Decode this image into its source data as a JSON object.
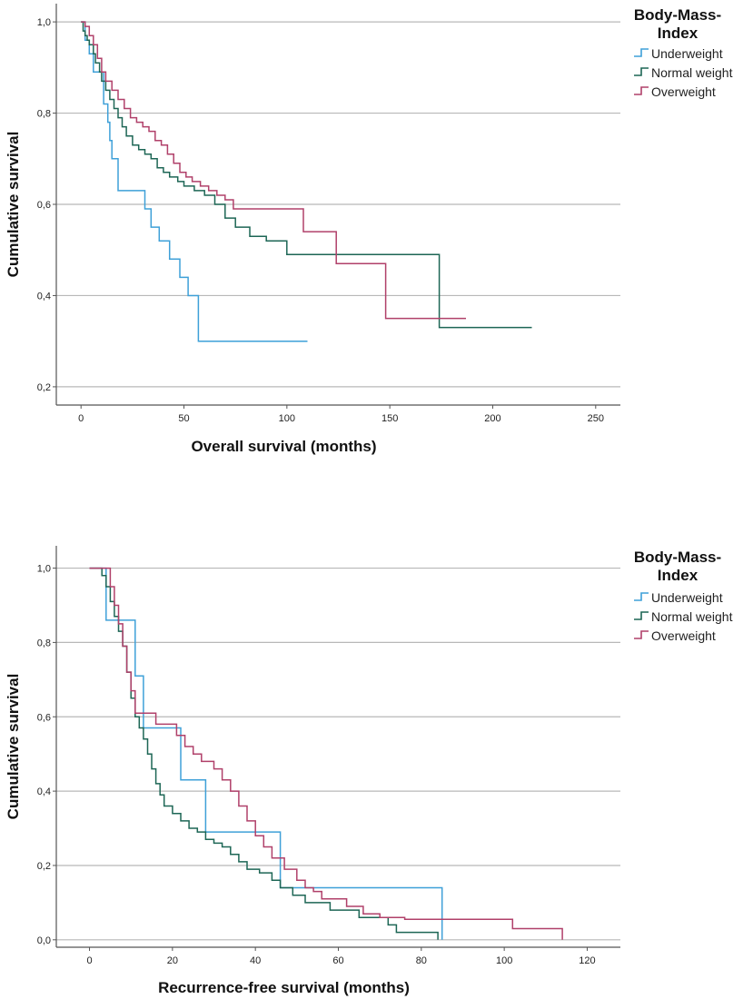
{
  "chart_data": [
    {
      "type": "line",
      "title": "",
      "xlabel": "Overall survival (months)",
      "ylabel": "Cumulative survival",
      "xlim": [
        -12,
        262
      ],
      "ylim": [
        0.16,
        1.04
      ],
      "xticks": [
        "0",
        "50",
        "100",
        "150",
        "200",
        "250"
      ],
      "xtick_values": [
        0,
        50,
        100,
        150,
        200,
        250
      ],
      "yticks": [
        "0,2",
        "0,4",
        "0,6",
        "0,8",
        "1,0"
      ],
      "ytick_values": [
        0.2,
        0.4,
        0.6,
        0.8,
        1.0
      ],
      "grid": "horizontal",
      "legend": {
        "title_line1": "Body-Mass-",
        "title_line2": "Index",
        "position": "top-right"
      },
      "series": [
        {
          "name": "Underweight",
          "color": "#3ea0d8",
          "points": [
            [
              0,
              1.0
            ],
            [
              2,
              0.96
            ],
            [
              4,
              0.93
            ],
            [
              6,
              0.89
            ],
            [
              9,
              0.89
            ],
            [
              11,
              0.82
            ],
            [
              13,
              0.78
            ],
            [
              14,
              0.74
            ],
            [
              15,
              0.7
            ],
            [
              18,
              0.63
            ],
            [
              29,
              0.63
            ],
            [
              31,
              0.59
            ],
            [
              34,
              0.55
            ],
            [
              38,
              0.52
            ],
            [
              43,
              0.48
            ],
            [
              48,
              0.44
            ],
            [
              52,
              0.4
            ],
            [
              57,
              0.3
            ],
            [
              110,
              0.3
            ]
          ]
        },
        {
          "name": "Normal weight",
          "color": "#1d6655",
          "points": [
            [
              0,
              1.0
            ],
            [
              1,
              0.98
            ],
            [
              2,
              0.97
            ],
            [
              3,
              0.96
            ],
            [
              4,
              0.95
            ],
            [
              6,
              0.93
            ],
            [
              7,
              0.91
            ],
            [
              9,
              0.89
            ],
            [
              10,
              0.87
            ],
            [
              12,
              0.85
            ],
            [
              14,
              0.83
            ],
            [
              16,
              0.81
            ],
            [
              18,
              0.79
            ],
            [
              20,
              0.77
            ],
            [
              22,
              0.75
            ],
            [
              25,
              0.73
            ],
            [
              28,
              0.72
            ],
            [
              31,
              0.71
            ],
            [
              34,
              0.7
            ],
            [
              37,
              0.68
            ],
            [
              40,
              0.67
            ],
            [
              43,
              0.66
            ],
            [
              47,
              0.65
            ],
            [
              50,
              0.64
            ],
            [
              55,
              0.63
            ],
            [
              60,
              0.62
            ],
            [
              65,
              0.6
            ],
            [
              70,
              0.57
            ],
            [
              75,
              0.55
            ],
            [
              82,
              0.53
            ],
            [
              90,
              0.52
            ],
            [
              100,
              0.49
            ],
            [
              174,
              0.49
            ],
            [
              174,
              0.33
            ],
            [
              219,
              0.33
            ]
          ]
        },
        {
          "name": "Overweight",
          "color": "#b0406a",
          "points": [
            [
              0,
              1.0
            ],
            [
              2,
              0.99
            ],
            [
              4,
              0.97
            ],
            [
              6,
              0.95
            ],
            [
              8,
              0.92
            ],
            [
              10,
              0.89
            ],
            [
              12,
              0.87
            ],
            [
              15,
              0.85
            ],
            [
              18,
              0.83
            ],
            [
              21,
              0.81
            ],
            [
              24,
              0.79
            ],
            [
              27,
              0.78
            ],
            [
              30,
              0.77
            ],
            [
              33,
              0.76
            ],
            [
              36,
              0.74
            ],
            [
              39,
              0.73
            ],
            [
              42,
              0.71
            ],
            [
              45,
              0.69
            ],
            [
              48,
              0.67
            ],
            [
              51,
              0.66
            ],
            [
              54,
              0.65
            ],
            [
              58,
              0.64
            ],
            [
              62,
              0.63
            ],
            [
              66,
              0.62
            ],
            [
              70,
              0.61
            ],
            [
              74,
              0.59
            ],
            [
              108,
              0.59
            ],
            [
              108,
              0.54
            ],
            [
              124,
              0.54
            ],
            [
              124,
              0.47
            ],
            [
              148,
              0.47
            ],
            [
              148,
              0.35
            ],
            [
              187,
              0.35
            ]
          ]
        }
      ]
    },
    {
      "type": "line",
      "title": "",
      "xlabel": "Recurrence-free survival (months)",
      "ylabel": "Cumulative survival",
      "xlim": [
        -8,
        128
      ],
      "ylim": [
        -0.02,
        1.06
      ],
      "xticks": [
        "0",
        "20",
        "40",
        "60",
        "80",
        "100",
        "120"
      ],
      "xtick_values": [
        0,
        20,
        40,
        60,
        80,
        100,
        120
      ],
      "yticks": [
        "0,0",
        "0,2",
        "0,4",
        "0,6",
        "0,8",
        "1,0"
      ],
      "ytick_values": [
        0.0,
        0.2,
        0.4,
        0.6,
        0.8,
        1.0
      ],
      "grid": "horizontal",
      "legend": {
        "title_line1": "Body-Mass-",
        "title_line2": "Index",
        "position": "top-right"
      },
      "series": [
        {
          "name": "Underweight",
          "color": "#3ea0d8",
          "points": [
            [
              0,
              1.0
            ],
            [
              4,
              1.0
            ],
            [
              4,
              0.86
            ],
            [
              11,
              0.86
            ],
            [
              11,
              0.71
            ],
            [
              13,
              0.71
            ],
            [
              13,
              0.57
            ],
            [
              22,
              0.57
            ],
            [
              22,
              0.43
            ],
            [
              28,
              0.43
            ],
            [
              28,
              0.29
            ],
            [
              46,
              0.29
            ],
            [
              46,
              0.14
            ],
            [
              85,
              0.14
            ],
            [
              85,
              0.0
            ]
          ]
        },
        {
          "name": "Normal weight",
          "color": "#1d6655",
          "points": [
            [
              0,
              1.0
            ],
            [
              3,
              0.98
            ],
            [
              4,
              0.95
            ],
            [
              5,
              0.91
            ],
            [
              6,
              0.87
            ],
            [
              7,
              0.83
            ],
            [
              8,
              0.79
            ],
            [
              9,
              0.72
            ],
            [
              10,
              0.65
            ],
            [
              11,
              0.6
            ],
            [
              12,
              0.57
            ],
            [
              13,
              0.54
            ],
            [
              14,
              0.5
            ],
            [
              15,
              0.46
            ],
            [
              16,
              0.42
            ],
            [
              17,
              0.39
            ],
            [
              18,
              0.36
            ],
            [
              20,
              0.34
            ],
            [
              22,
              0.32
            ],
            [
              24,
              0.3
            ],
            [
              26,
              0.29
            ],
            [
              28,
              0.27
            ],
            [
              30,
              0.26
            ],
            [
              32,
              0.25
            ],
            [
              34,
              0.23
            ],
            [
              36,
              0.21
            ],
            [
              38,
              0.19
            ],
            [
              41,
              0.18
            ],
            [
              44,
              0.16
            ],
            [
              46,
              0.14
            ],
            [
              49,
              0.12
            ],
            [
              52,
              0.1
            ],
            [
              58,
              0.08
            ],
            [
              65,
              0.06
            ],
            [
              72,
              0.04
            ],
            [
              74,
              0.02
            ],
            [
              84,
              0.02
            ],
            [
              84,
              0.0
            ]
          ]
        },
        {
          "name": "Overweight",
          "color": "#b0406a",
          "points": [
            [
              0,
              1.0
            ],
            [
              4,
              1.0
            ],
            [
              5,
              0.95
            ],
            [
              6,
              0.9
            ],
            [
              7,
              0.85
            ],
            [
              8,
              0.79
            ],
            [
              9,
              0.72
            ],
            [
              10,
              0.67
            ],
            [
              11,
              0.61
            ],
            [
              16,
              0.58
            ],
            [
              21,
              0.55
            ],
            [
              23,
              0.52
            ],
            [
              25,
              0.5
            ],
            [
              27,
              0.48
            ],
            [
              30,
              0.46
            ],
            [
              32,
              0.43
            ],
            [
              34,
              0.4
            ],
            [
              36,
              0.36
            ],
            [
              38,
              0.32
            ],
            [
              40,
              0.28
            ],
            [
              42,
              0.25
            ],
            [
              44,
              0.22
            ],
            [
              47,
              0.19
            ],
            [
              50,
              0.16
            ],
            [
              52,
              0.14
            ],
            [
              54,
              0.13
            ],
            [
              56,
              0.11
            ],
            [
              62,
              0.09
            ],
            [
              66,
              0.07
            ],
            [
              70,
              0.06
            ],
            [
              76,
              0.055
            ],
            [
              102,
              0.055
            ],
            [
              102,
              0.03
            ],
            [
              114,
              0.03
            ],
            [
              114,
              0.0
            ]
          ]
        }
      ]
    }
  ]
}
